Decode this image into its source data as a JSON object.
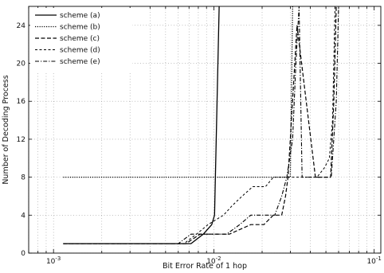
{
  "chart_data": {
    "type": "line",
    "title": "",
    "xlabel": "Bit Error Rate of 1 hop",
    "ylabel": "Number of Decoding Process",
    "xscale": "log",
    "xlim": [
      0.0007,
      0.11
    ],
    "ylim": [
      0,
      26
    ],
    "xticks": [
      {
        "value": 0.001,
        "base": "10",
        "exp": "-3"
      },
      {
        "value": 0.01,
        "base": "10",
        "exp": "-2"
      },
      {
        "value": 0.1,
        "base": "10",
        "exp": "-1"
      }
    ],
    "yticks": [
      0,
      4,
      8,
      12,
      16,
      20,
      24
    ],
    "grid": true,
    "legend_position": "top-left",
    "series": [
      {
        "name": "scheme (a)",
        "style": "solid",
        "x": [
          0.00115,
          0.0072,
          0.0086,
          0.0097,
          0.0101,
          0.0108
        ],
        "y": [
          1,
          1,
          2,
          3,
          4,
          26
        ]
      },
      {
        "name": "scheme (b)",
        "style": "dotted",
        "x": [
          0.00115,
          0.028,
          0.03,
          0.031
        ],
        "y": [
          8,
          8,
          8,
          26
        ]
      },
      {
        "name": "scheme (c)",
        "style": "dashed",
        "x": [
          0.00115,
          0.0067,
          0.0082,
          0.0125,
          0.017,
          0.0205,
          0.0235,
          0.0265,
          0.028,
          0.029,
          0.03,
          0.033,
          0.043,
          0.05,
          0.0535,
          0.056,
          0.058
        ],
        "y": [
          1,
          1,
          2,
          2,
          3,
          3,
          4,
          4,
          6,
          8,
          12,
          24,
          8,
          8,
          8,
          16,
          26
        ]
      },
      {
        "name": "scheme (d)",
        "style": "short-dash",
        "x": [
          0.00115,
          0.0065,
          0.0078,
          0.0092,
          0.0115,
          0.013,
          0.015,
          0.0175,
          0.021,
          0.0235,
          0.0265,
          0.028,
          0.03,
          0.038,
          0.044,
          0.049,
          0.0525,
          0.055,
          0.057
        ],
        "y": [
          1,
          1,
          2,
          3,
          4,
          5,
          6,
          7,
          7,
          8,
          8,
          8,
          8,
          8,
          8,
          9,
          10,
          14,
          26
        ]
      },
      {
        "name": "scheme (e)",
        "style": "dash-dot",
        "x": [
          0.00115,
          0.006,
          0.0072,
          0.0088,
          0.0105,
          0.012,
          0.0145,
          0.017,
          0.02,
          0.024,
          0.0265,
          0.0285,
          0.031,
          0.0325,
          0.034,
          0.0355,
          0.045,
          0.05,
          0.054,
          0.058,
          0.06
        ],
        "y": [
          1,
          1,
          2,
          2,
          2,
          2,
          3,
          4,
          4,
          4,
          6,
          8,
          12,
          20,
          26,
          8,
          8,
          8,
          8,
          16,
          26
        ]
      }
    ]
  }
}
